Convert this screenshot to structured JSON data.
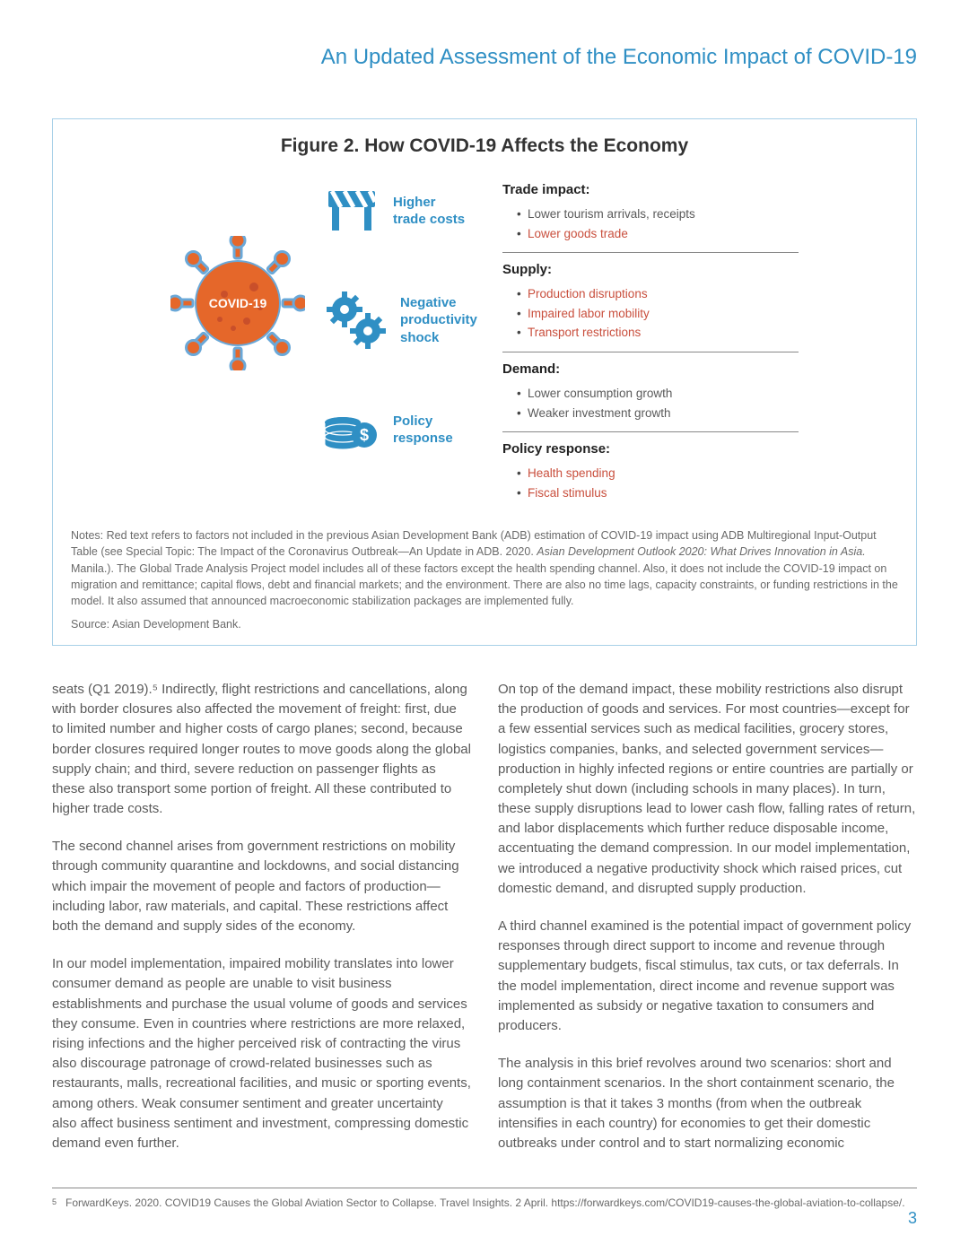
{
  "colors": {
    "accent_blue": "#2f8fc4",
    "highlight_red": "#c94f3d",
    "text_gray": "#5a5a5a",
    "border_blue": "#a8d0e8",
    "icon_blue": "#2f8fc4",
    "virus_orange": "#e5672a",
    "virus_stroke": "#6aa8d8"
  },
  "header": {
    "title": "An Updated Assessment of the Economic Impact of COVID-19"
  },
  "figure": {
    "title": "Figure 2. How COVID-19 Affects the Economy",
    "virus_label": "COVID-19",
    "channels": [
      {
        "icon": "barrier-icon",
        "label_l1": "Higher",
        "label_l2": "trade costs"
      },
      {
        "icon": "gears-icon",
        "label_l1": "Negative",
        "label_l2": "productivity",
        "label_l3": "shock"
      },
      {
        "icon": "coins-icon",
        "label_l1": "Policy",
        "label_l2": "response"
      }
    ],
    "impacts": [
      {
        "heading": "Trade impact:",
        "items": [
          {
            "text": "Lower tourism arrivals, receipts",
            "red": false
          },
          {
            "text": "Lower goods trade",
            "red": true
          }
        ]
      },
      {
        "heading": "Supply:",
        "items": [
          {
            "text": "Production disruptions",
            "red": true
          },
          {
            "text": "Impaired labor mobility",
            "red": true
          },
          {
            "text": "Transport restrictions",
            "red": true
          }
        ]
      },
      {
        "heading": "Demand:",
        "items": [
          {
            "text": "Lower consumption growth",
            "red": false
          },
          {
            "text": "Weaker investment growth",
            "red": false
          }
        ]
      },
      {
        "heading": "Policy response:",
        "items": [
          {
            "text": "Health spending",
            "red": true
          },
          {
            "text": "Fiscal stimulus",
            "red": true
          }
        ]
      }
    ],
    "notes_pre": "Notes: Red text refers to factors not included in the previous Asian Development Bank (ADB) estimation of COVID-19 impact using ADB Multiregional Input-Output Table (see Special Topic: The Impact of the Coronavirus Outbreak—An Update in ADB. 2020. ",
    "notes_em": "Asian Development Outlook 2020: What Drives Innovation in Asia.",
    "notes_post": " Manila.). The Global Trade Analysis Project model includes all of these factors except the health spending channel.  Also, it does not include the COVID-19 impact on migration and remittance; capital flows, debt and financial markets; and the environment. There are also no time lags, capacity constraints, or funding restrictions in the model. It also assumed that announced macroeconomic stabilization packages are implemented fully.",
    "source": "Source: Asian Development Bank."
  },
  "body": {
    "left": [
      "seats (Q1 2019).⁵ Indirectly, flight restrictions and cancellations, along with border closures also affected the movement of freight: first, due to limited number and higher costs of cargo planes; second, because border closures required longer routes to move goods along the global supply chain; and third, severe reduction on passenger flights as these also transport some portion of freight. All these contributed to higher trade costs.",
      "The second channel arises from government restrictions on mobility through community quarantine and lockdowns, and social distancing which impair the movement of people and factors of production—including labor, raw materials, and capital. These restrictions affect both the demand and supply sides of the economy.",
      "In our model implementation, impaired mobility translates into lower consumer demand as people are unable to visit business establishments and purchase the usual volume of goods and services they consume. Even in countries where restrictions are more relaxed, rising infections and the higher perceived risk of contracting the virus also discourage patronage of crowd-related businesses such as restaurants, malls, recreational facilities, and music or sporting events, among others. Weak consumer sentiment and greater uncertainty also affect business sentiment and investment, compressing domestic demand even further."
    ],
    "right": [
      "On top of the demand impact, these mobility restrictions also disrupt the production of goods and services. For most countries—except for a few essential services such as medical facilities, grocery stores, logistics companies, banks, and selected government services—production in highly infected regions or entire countries are partially or completely shut down (including schools in many places). In turn, these supply disruptions lead to lower cash flow, falling rates of return, and labor displacements which further reduce disposable income, accentuating the demand compression. In our model implementation, we introduced a negative productivity shock which raised prices, cut domestic demand, and disrupted supply production.",
      "A third channel examined is the potential impact of government policy responses through direct support to income and revenue through supplementary budgets, fiscal stimulus, tax cuts, or tax deferrals. In the model implementation, direct income and revenue support was implemented as subsidy or negative taxation to consumers and producers.",
      "The analysis in this brief revolves around two scenarios: short and long containment scenarios. In the short containment scenario, the assumption is that it takes 3 months (from when the outbreak intensifies in each country) for economies to get their domestic outbreaks under control and to start normalizing economic"
    ]
  },
  "footnote": {
    "num": "5",
    "text": "ForwardKeys. 2020. COVID19 Causes the Global Aviation Sector to Collapse. Travel Insights. 2 April. https://forwardkeys.com/COVID19-causes-the-global-aviation-to-collapse/."
  },
  "page_number": "3"
}
